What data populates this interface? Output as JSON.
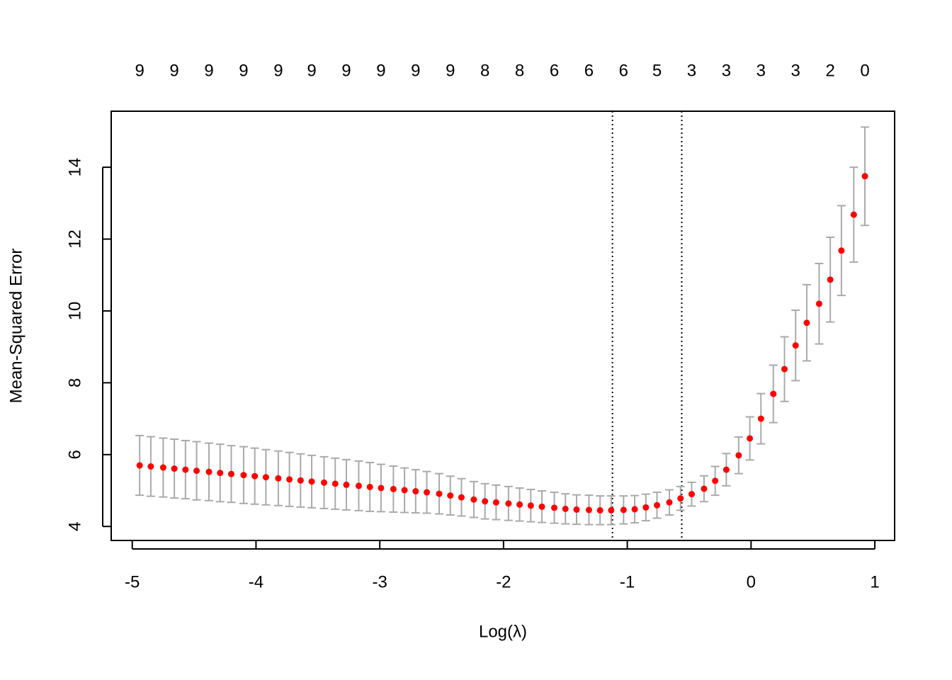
{
  "chart_data": {
    "type": "errorbar-scatter",
    "xlabel": "Log(λ)",
    "ylabel": "Mean-Squared Error",
    "x": [
      -4.94,
      -4.85,
      -4.75,
      -4.66,
      -4.57,
      -4.48,
      -4.38,
      -4.29,
      -4.2,
      -4.1,
      -4.01,
      -3.92,
      -3.82,
      -3.73,
      -3.64,
      -3.55,
      -3.45,
      -3.36,
      -3.27,
      -3.17,
      -3.08,
      -2.99,
      -2.89,
      -2.8,
      -2.71,
      -2.62,
      -2.52,
      -2.43,
      -2.34,
      -2.24,
      -2.15,
      -2.06,
      -1.96,
      -1.87,
      -1.78,
      -1.69,
      -1.59,
      -1.5,
      -1.41,
      -1.31,
      -1.22,
      -1.13,
      -1.03,
      -0.94,
      -0.85,
      -0.76,
      -0.66,
      -0.57,
      -0.48,
      -0.38,
      -0.29,
      -0.2,
      -0.1,
      -0.01,
      0.08,
      0.18,
      0.27,
      0.36,
      0.45,
      0.55,
      0.64,
      0.73,
      0.83,
      0.92
    ],
    "values": [
      5.7,
      5.67,
      5.64,
      5.61,
      5.58,
      5.55,
      5.52,
      5.49,
      5.46,
      5.43,
      5.4,
      5.37,
      5.34,
      5.31,
      5.28,
      5.25,
      5.22,
      5.19,
      5.16,
      5.13,
      5.1,
      5.07,
      5.04,
      5.01,
      4.98,
      4.95,
      4.91,
      4.86,
      4.81,
      4.75,
      4.7,
      4.67,
      4.64,
      4.61,
      4.58,
      4.55,
      4.52,
      4.49,
      4.47,
      4.46,
      4.45,
      4.45,
      4.46,
      4.48,
      4.53,
      4.59,
      4.67,
      4.78,
      4.9,
      5.05,
      5.27,
      5.58,
      5.98,
      6.45,
      7.0,
      7.69,
      8.38,
      9.04,
      9.67,
      10.2,
      10.87,
      11.68,
      12.68,
      13.75
    ],
    "errors": [
      0.83,
      0.83,
      0.82,
      0.82,
      0.81,
      0.81,
      0.8,
      0.8,
      0.79,
      0.79,
      0.78,
      0.77,
      0.76,
      0.75,
      0.74,
      0.73,
      0.72,
      0.71,
      0.7,
      0.69,
      0.68,
      0.66,
      0.64,
      0.62,
      0.6,
      0.58,
      0.56,
      0.54,
      0.52,
      0.5,
      0.49,
      0.48,
      0.47,
      0.46,
      0.45,
      0.44,
      0.43,
      0.42,
      0.41,
      0.41,
      0.4,
      0.4,
      0.39,
      0.38,
      0.37,
      0.36,
      0.35,
      0.33,
      0.33,
      0.36,
      0.4,
      0.45,
      0.51,
      0.6,
      0.7,
      0.8,
      0.9,
      0.98,
      1.06,
      1.12,
      1.18,
      1.25,
      1.32,
      1.37
    ],
    "color": "#ff0000",
    "error_color": "#aaaaaa",
    "vlines": [
      -1.12,
      -0.56
    ],
    "top_x": [
      -4.94,
      -4.66,
      -4.38,
      -4.1,
      -3.82,
      -3.55,
      -3.27,
      -2.99,
      -2.71,
      -2.43,
      -2.15,
      -1.87,
      -1.59,
      -1.31,
      -1.03,
      -0.76,
      -0.48,
      -0.2,
      0.08,
      0.36,
      0.64,
      0.92
    ],
    "top_labels": [
      9,
      9,
      9,
      9,
      9,
      9,
      9,
      9,
      9,
      9,
      8,
      8,
      6,
      6,
      6,
      5,
      3,
      3,
      3,
      3,
      2,
      0
    ],
    "xlim": [
      -5.17,
      1.16
    ],
    "xticks": [
      -5,
      -4,
      -3,
      -2,
      -1,
      0,
      1
    ],
    "ylim": [
      3.61,
      15.56
    ],
    "yticks": [
      4,
      6,
      8,
      10,
      12,
      14
    ]
  }
}
